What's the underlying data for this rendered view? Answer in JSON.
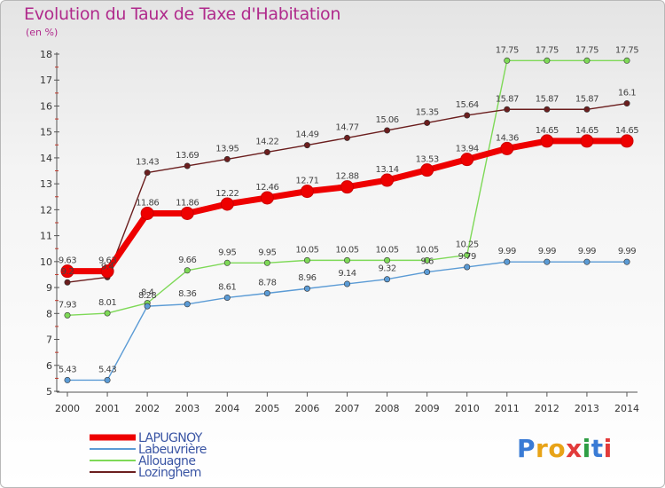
{
  "title": "Evolution du Taux de Taxe d'Habitation",
  "subtitle": "(en %)",
  "logo": {
    "letters": [
      "P",
      "r",
      "o",
      "x",
      "i",
      "t",
      "i"
    ],
    "colors": [
      "#3a7bd5",
      "#e8a317",
      "#e8a317",
      "#e23b3b",
      "#2f9e44",
      "#3a7bd5",
      "#e23b3b"
    ]
  },
  "chart_data": {
    "type": "line",
    "x": [
      "2000",
      "2001",
      "2002",
      "2003",
      "2004",
      "2005",
      "2006",
      "2007",
      "2008",
      "2009",
      "2010",
      "2011",
      "2012",
      "2013",
      "2014"
    ],
    "ylim": [
      5,
      18
    ],
    "yticks": [
      5,
      6,
      7,
      8,
      9,
      10,
      11,
      12,
      13,
      14,
      15,
      16,
      17,
      18
    ],
    "grid": false,
    "legend_position": "bottom-left",
    "series": [
      {
        "name": "LAPUGNOY",
        "color": "#ee0000",
        "values": [
          9.63,
          9.63,
          11.86,
          11.86,
          12.22,
          12.46,
          12.71,
          12.88,
          13.14,
          13.53,
          13.94,
          14.36,
          14.65,
          14.65,
          14.65
        ],
        "labels": [
          "9.63",
          "9.63",
          "11.86",
          "11.86",
          "12.22",
          "12.46",
          "12.71",
          "12.88",
          "13.14",
          "13.53",
          "13.94",
          "14.36",
          "14.65",
          "14.65",
          "14.65"
        ]
      },
      {
        "name": "Labeuvrière",
        "color": "#5b9bd5",
        "values": [
          5.43,
          5.43,
          8.28,
          8.36,
          8.61,
          8.78,
          8.96,
          9.14,
          9.32,
          9.6,
          9.79,
          9.99,
          9.99,
          9.99,
          9.99
        ],
        "labels": [
          "5.43",
          "5.43",
          "8.28",
          "8.36",
          "8.61",
          "8.78",
          "8.96",
          "9.14",
          "9.32",
          "9.6",
          "9.79",
          "9.99",
          "9.99",
          "9.99",
          "9.99"
        ]
      },
      {
        "name": "Allouagne",
        "color": "#7ed957",
        "values": [
          7.93,
          8.01,
          8.4,
          9.66,
          9.95,
          9.95,
          10.05,
          10.05,
          10.05,
          10.05,
          10.25,
          17.75,
          17.75,
          17.75,
          17.75
        ],
        "labels": [
          "7.93",
          "8.01",
          "8.4",
          "9.66",
          "9.95",
          "9.95",
          "10.05",
          "10.05",
          "10.05",
          "10.05",
          "10.25",
          "17.75",
          "17.75",
          "17.75",
          "17.75"
        ]
      },
      {
        "name": "Lozinghem",
        "color": "#6b1e1e",
        "values": [
          9.2,
          9.4,
          13.43,
          13.69,
          13.95,
          14.22,
          14.49,
          14.77,
          15.06,
          15.35,
          15.64,
          15.87,
          15.87,
          15.87,
          16.1
        ],
        "labels": [
          "9.2",
          "9.4",
          "13.43",
          "13.69",
          "13.95",
          "14.22",
          "14.49",
          "14.77",
          "15.06",
          "15.35",
          "15.64",
          "15.87",
          "15.87",
          "15.87",
          "16.1"
        ]
      }
    ]
  }
}
